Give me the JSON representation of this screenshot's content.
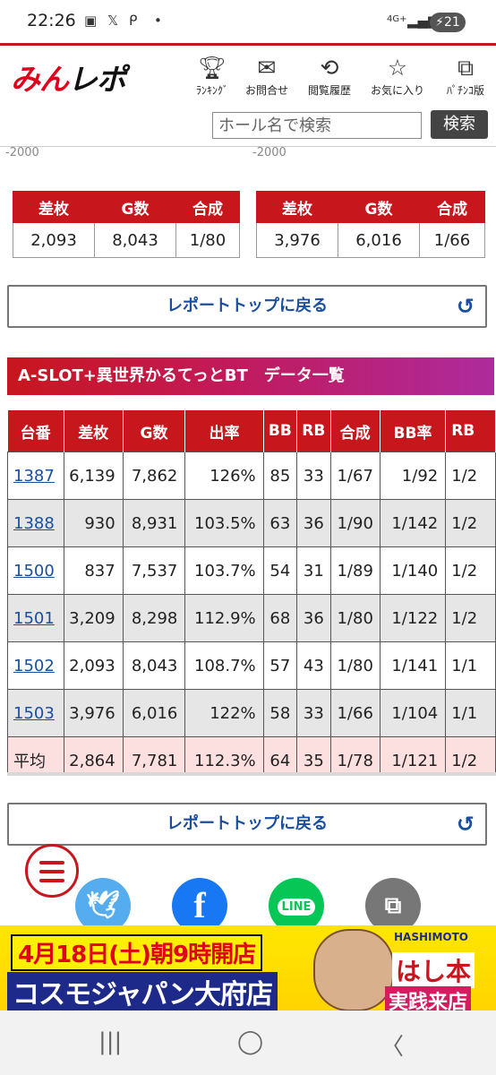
{
  "status_bar": {
    "time": "22:26",
    "network": "4G+",
    "battery": "21",
    "icons": [
      "screenshot-icon",
      "x-icon",
      "p-icon",
      "dot-icon",
      "signal-icon"
    ]
  },
  "header": {
    "logo_text_red": "みん",
    "logo_text_dark": "レポ",
    "nav": [
      {
        "label": "ﾗﾝｷﾝｸﾞ",
        "icon": "trophy-icon"
      },
      {
        "label": "お問合せ",
        "icon": "mail-icon"
      },
      {
        "label": "閲覧履歴",
        "icon": "history-icon"
      },
      {
        "label": "お気に入り",
        "icon": "star-icon"
      },
      {
        "label": "ﾊﾟﾁﾝｺ版",
        "icon": "external-link-icon"
      }
    ],
    "search_placeholder": "ホール名で検索",
    "search_button": "検索"
  },
  "axis_cut_labels": [
    "-2000",
    "-2000"
  ],
  "summary_tables": [
    {
      "headers": [
        "差枚",
        "G数",
        "合成"
      ],
      "values": [
        "2,093",
        "8,043",
        "1/80"
      ]
    },
    {
      "headers": [
        "差枚",
        "G数",
        "合成"
      ],
      "values": [
        "3,976",
        "6,016",
        "1/66"
      ]
    }
  ],
  "report_top_label": "レポートトップに戻る",
  "section_title": "A-SLOT+異世界かるてっとBT　データ一覧",
  "table": {
    "headers": [
      "台番",
      "差枚",
      "G数",
      "出率",
      "BB",
      "RB",
      "合成",
      "BB率",
      "RB"
    ],
    "rows": [
      {
        "no": "1387",
        "diff": "6,139",
        "games": "7,862",
        "rate": "126%",
        "bb": "85",
        "rb": "33",
        "combined": "1/67",
        "bb_rate": "1/92",
        "rb_rate": "1/2"
      },
      {
        "no": "1388",
        "diff": "930",
        "games": "8,931",
        "rate": "103.5%",
        "bb": "63",
        "rb": "36",
        "combined": "1/90",
        "bb_rate": "1/142",
        "rb_rate": "1/2"
      },
      {
        "no": "1500",
        "diff": "837",
        "games": "7,537",
        "rate": "103.7%",
        "bb": "54",
        "rb": "31",
        "combined": "1/89",
        "bb_rate": "1/140",
        "rb_rate": "1/2"
      },
      {
        "no": "1501",
        "diff": "3,209",
        "games": "8,298",
        "rate": "112.9%",
        "bb": "68",
        "rb": "36",
        "combined": "1/80",
        "bb_rate": "1/122",
        "rb_rate": "1/2"
      },
      {
        "no": "1502",
        "diff": "2,093",
        "games": "8,043",
        "rate": "108.7%",
        "bb": "57",
        "rb": "43",
        "combined": "1/80",
        "bb_rate": "1/141",
        "rb_rate": "1/1"
      },
      {
        "no": "1503",
        "diff": "3,976",
        "games": "6,016",
        "rate": "122%",
        "bb": "58",
        "rb": "33",
        "combined": "1/66",
        "bb_rate": "1/104",
        "rb_rate": "1/1"
      }
    ],
    "average": {
      "no": "平均",
      "diff": "2,864",
      "games": "7,781",
      "rate": "112.3%",
      "bb": "64",
      "rb": "35",
      "combined": "1/78",
      "bb_rate": "1/121",
      "rb_rate": "1/2"
    }
  },
  "share": {
    "facebook": "f",
    "line": "LINE"
  },
  "ad": {
    "line_a": "4月18日(土)朝9時開店",
    "line_b": "コスモジャパン大府店",
    "right_small": "HASHIMOTO",
    "right_a": "はし本",
    "right_b": "実践来店"
  },
  "colors": {
    "brand_red": "#c8161d",
    "link_blue": "#1a4fa0",
    "alt_row": "#e6e6e6",
    "avg_row": "#fce0e0"
  }
}
